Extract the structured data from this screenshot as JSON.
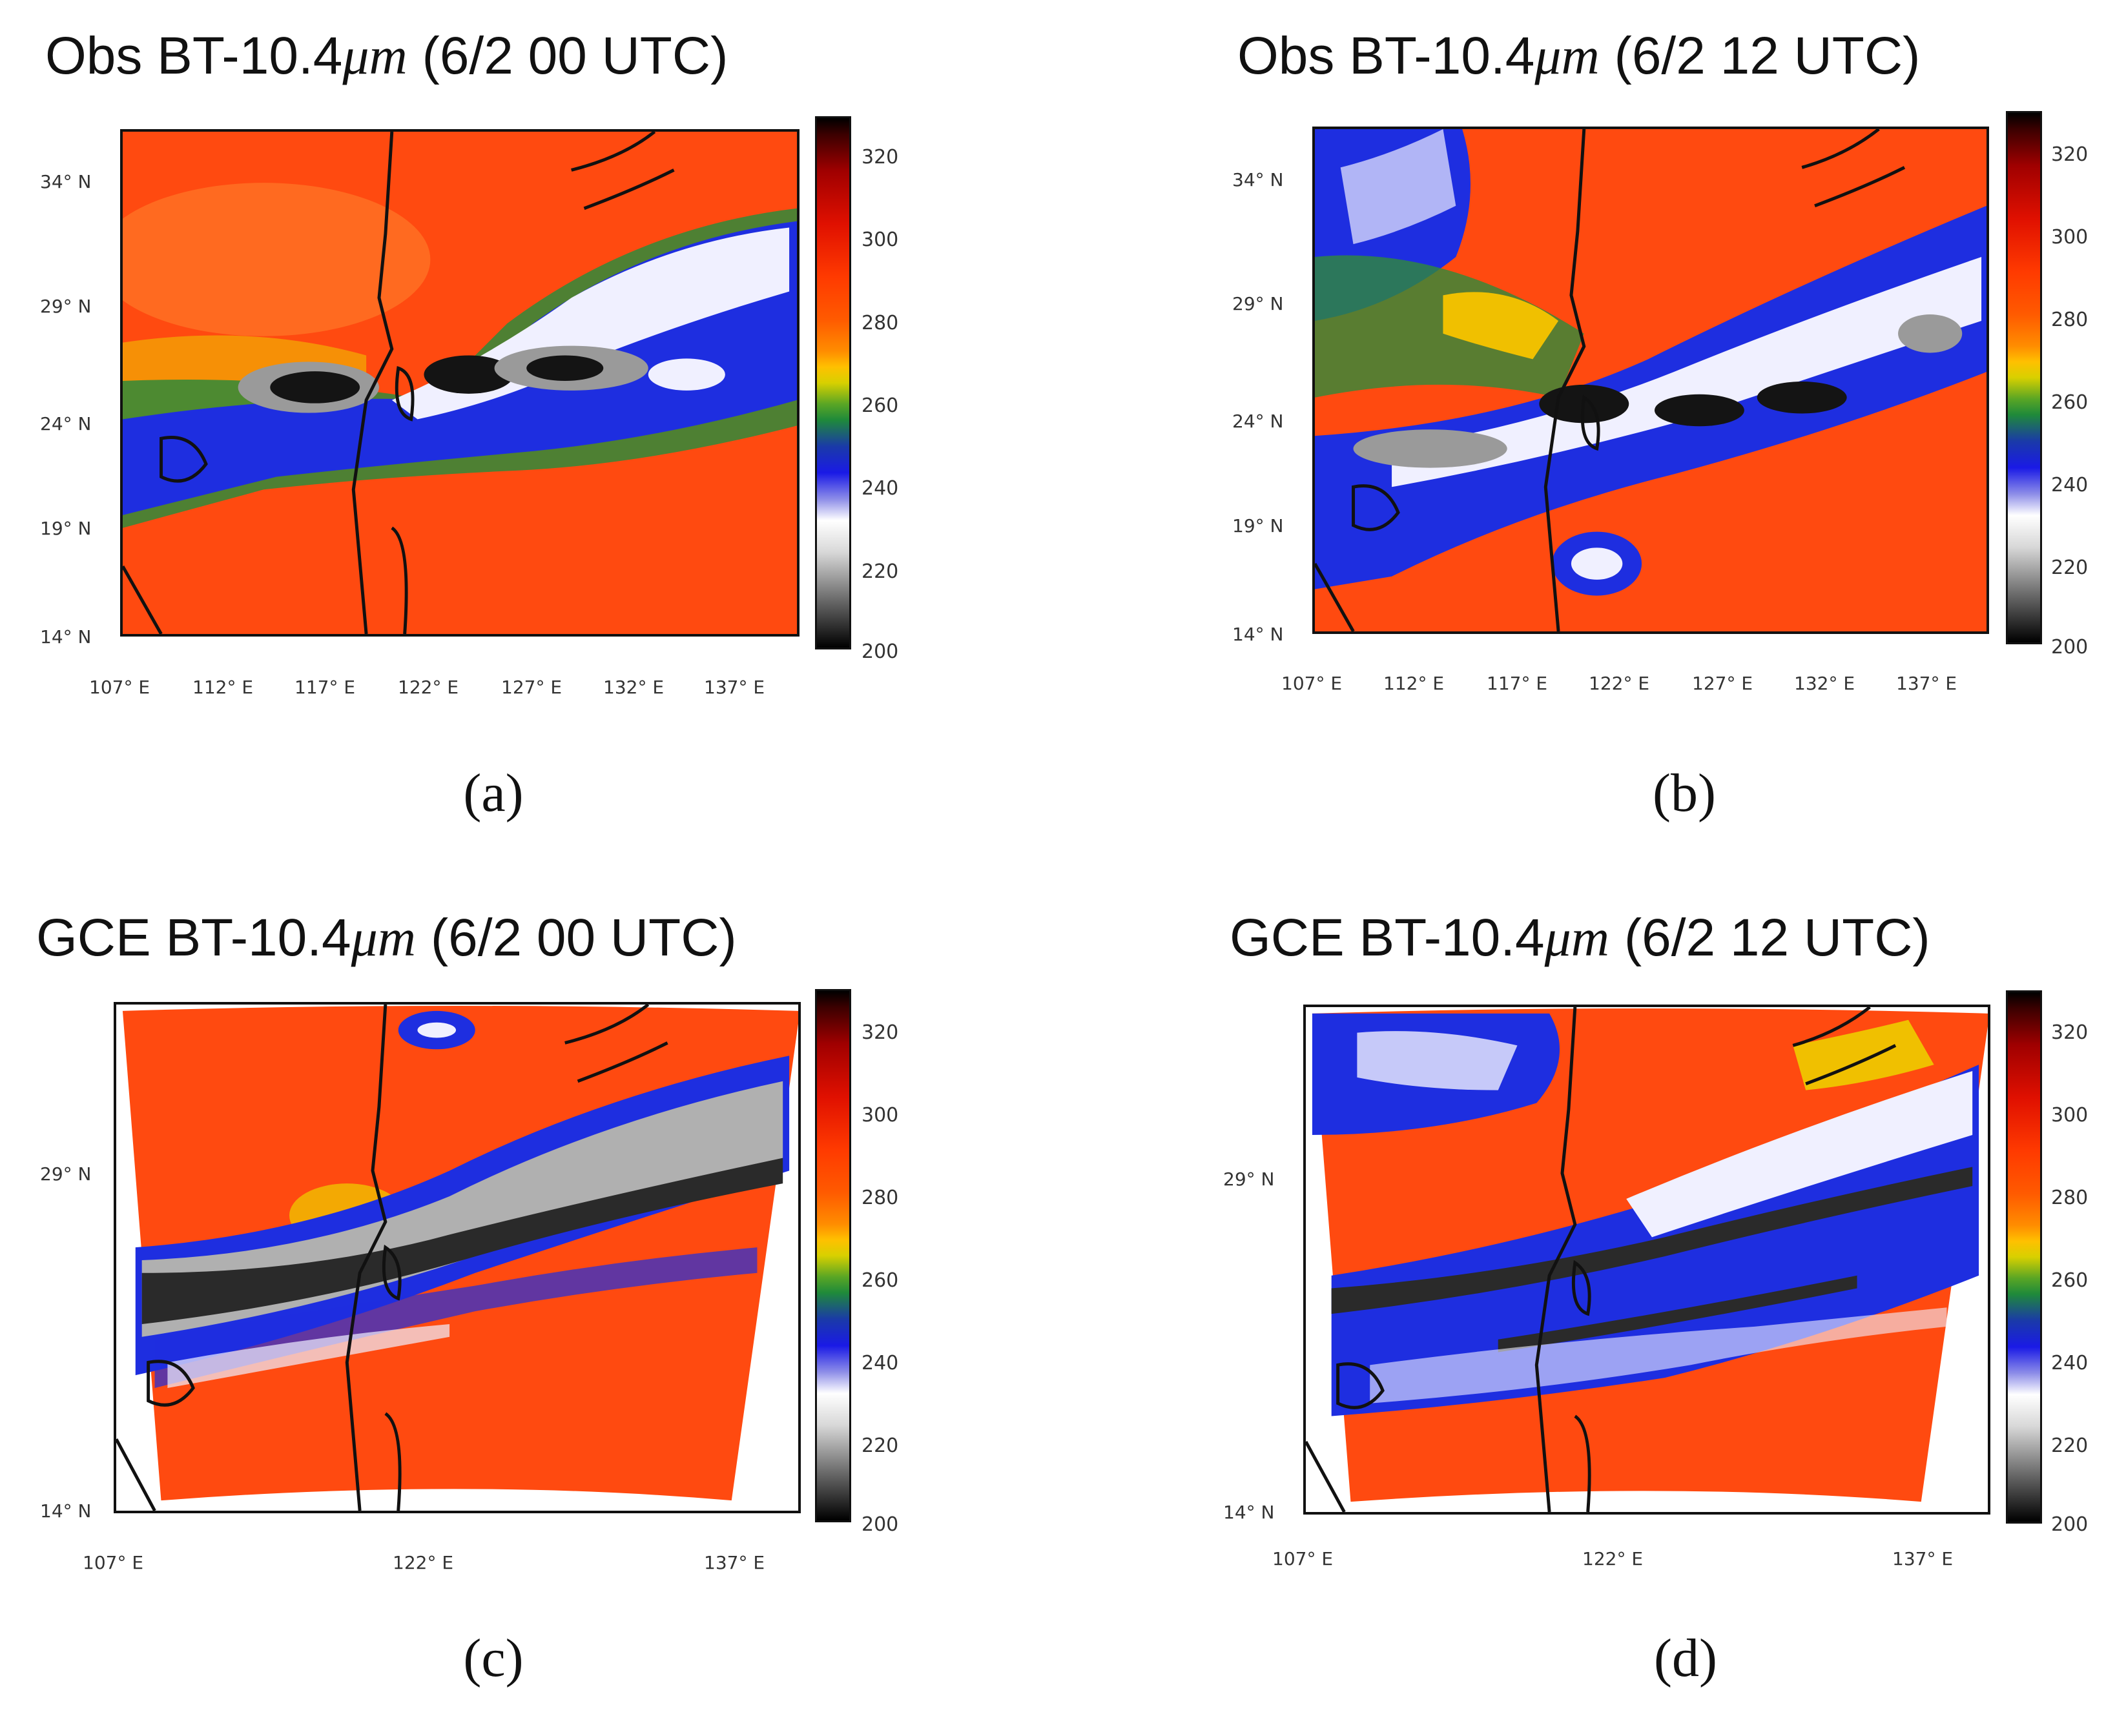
{
  "colorbar": {
    "ticks": [
      "320",
      "300",
      "280",
      "260",
      "240",
      "220",
      "200"
    ]
  },
  "panels": {
    "a": {
      "title_prefix": "Obs BT-10.4",
      "title_mu": "μm",
      "title_suffix": " (6/2 00 UTC)",
      "caption": "(a)",
      "lat_ticks": [
        "34° N",
        "29° N",
        "24° N",
        "19° N",
        "14° N"
      ],
      "lon_ticks": [
        "107° E",
        "112° E",
        "117° E",
        "122° E",
        "127° E",
        "132° E",
        "137° E"
      ]
    },
    "b": {
      "title_prefix": "Obs BT-10.4",
      "title_mu": "μm",
      "title_suffix": " (6/2 12 UTC)",
      "caption": "(b)",
      "lat_ticks": [
        "34° N",
        "29° N",
        "24° N",
        "19° N",
        "14° N"
      ],
      "lon_ticks": [
        "107° E",
        "112° E",
        "117° E",
        "122° E",
        "127° E",
        "132° E",
        "137° E"
      ]
    },
    "c": {
      "title_prefix": "GCE BT-10.4",
      "title_mu": "μm",
      "title_suffix": " (6/2 00 UTC)",
      "caption": "(c)",
      "lat_ticks": [
        "29° N",
        "14° N"
      ],
      "lon_ticks": [
        "107° E",
        "122° E",
        "137° E"
      ]
    },
    "d": {
      "title_prefix": "GCE BT-10.4",
      "title_mu": "μm",
      "title_suffix": " (6/2 12 UTC)",
      "caption": "(d)",
      "lat_ticks": [
        "29° N",
        "14° N"
      ],
      "lon_ticks": [
        "107° E",
        "122° E",
        "137° E"
      ]
    }
  },
  "colors": {
    "warm": "#ff4a10",
    "warm_light": "#ff6a20",
    "cloud_blue": "#1e2ee0",
    "cloud_white": "#f0f0ff",
    "cloud_gray": "#9a9a9a",
    "cloud_black": "#141414",
    "green": "#2f8a3a",
    "yellow": "#f0c000"
  }
}
